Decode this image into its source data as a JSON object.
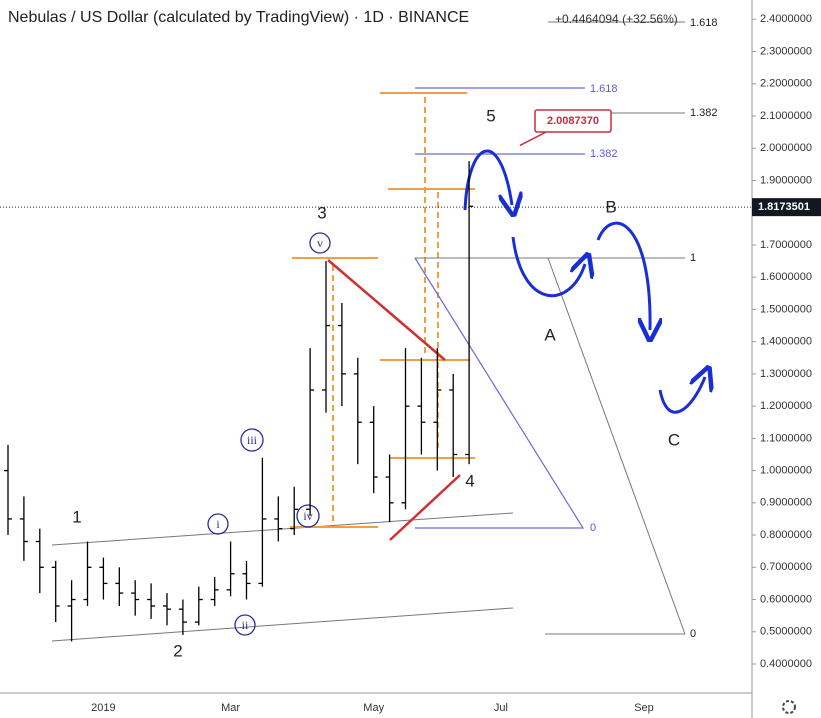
{
  "chart_data": {
    "type": "ohlc",
    "title": "Nebulas / US Dollar (calculated by TradingView) · 1D · BINANCE",
    "change": "+0.4464094 (+32.56%)",
    "categories": [
      null,
      null,
      null,
      null,
      null,
      null,
      "2019",
      null,
      null,
      null,
      null,
      null,
      null,
      null,
      "Mar",
      null,
      null,
      null,
      null,
      null,
      null,
      null,
      null,
      "May",
      null,
      null,
      null,
      null,
      null,
      null,
      null,
      "Jul",
      null,
      null,
      null,
      null,
      null,
      null,
      null,
      null,
      "Sep",
      null,
      null,
      null,
      null,
      null
    ],
    "open": [
      1.0,
      0.85,
      0.78,
      0.7,
      0.58,
      0.6,
      0.7,
      0.65,
      0.62,
      0.6,
      0.58,
      0.57,
      0.53,
      0.6,
      0.63,
      0.68,
      0.65,
      0.85,
      0.82,
      0.88,
      1.25,
      1.45,
      1.3,
      1.15,
      0.98,
      0.9,
      1.2,
      1.15,
      1.25,
      1.05,
      null,
      null,
      null,
      null,
      null,
      null,
      null,
      null,
      null,
      null,
      null,
      null,
      null,
      null,
      null,
      null
    ],
    "high": [
      1.08,
      0.92,
      0.82,
      0.72,
      0.66,
      0.78,
      0.73,
      0.7,
      0.66,
      0.65,
      0.62,
      0.6,
      0.64,
      0.67,
      0.78,
      0.72,
      1.04,
      0.92,
      0.95,
      1.38,
      1.65,
      1.52,
      1.35,
      1.2,
      1.05,
      1.38,
      1.35,
      1.38,
      1.3,
      1.96,
      null,
      null,
      null,
      null,
      null,
      null,
      null,
      null,
      null,
      null,
      null,
      null,
      null,
      null,
      null,
      null
    ],
    "low": [
      0.8,
      0.72,
      0.62,
      0.53,
      0.47,
      0.58,
      0.6,
      0.58,
      0.55,
      0.54,
      0.52,
      0.49,
      0.52,
      0.58,
      0.61,
      0.6,
      0.64,
      0.78,
      0.8,
      0.86,
      1.18,
      1.2,
      1.02,
      0.93,
      0.84,
      0.88,
      1.05,
      1.0,
      0.98,
      1.02,
      null,
      null,
      null,
      null,
      null,
      null,
      null,
      null,
      null,
      null,
      null,
      null,
      null,
      null,
      null,
      null
    ],
    "close": [
      0.85,
      0.78,
      0.7,
      0.58,
      0.6,
      0.7,
      0.65,
      0.62,
      0.6,
      0.58,
      0.57,
      0.53,
      0.6,
      0.63,
      0.68,
      0.65,
      0.85,
      0.82,
      0.88,
      1.25,
      1.45,
      1.3,
      1.15,
      0.98,
      0.9,
      1.2,
      1.15,
      1.25,
      1.05,
      1.82,
      null,
      null,
      null,
      null,
      null,
      null,
      null,
      null,
      null,
      null,
      null,
      null,
      null,
      null,
      null,
      null
    ],
    "color": "#000000",
    "ylim": [
      0.31,
      2.46
    ],
    "yticks": [
      {
        "value": 0.4,
        "label": "0.4000000"
      },
      {
        "value": 0.5,
        "label": "0.5000000"
      },
      {
        "value": 0.6,
        "label": "0.6000000"
      },
      {
        "value": 0.7,
        "label": "0.7000000"
      },
      {
        "value": 0.8,
        "label": "0.8000000"
      },
      {
        "value": 0.9,
        "label": "0.9000000"
      },
      {
        "value": 1.0,
        "label": "1.0000000"
      },
      {
        "value": 1.1,
        "label": "1.1000000"
      },
      {
        "value": 1.2,
        "label": "1.2000000"
      },
      {
        "value": 1.3,
        "label": "1.3000000"
      },
      {
        "value": 1.4,
        "label": "1.4000000"
      },
      {
        "value": 1.5,
        "label": "1.5000000"
      },
      {
        "value": 1.6,
        "label": "1.6000000"
      },
      {
        "value": 1.7,
        "label": "1.7000000"
      },
      {
        "value": 1.8,
        "label": "1.8000000"
      },
      {
        "value": 1.9,
        "label": "1.9000000"
      },
      {
        "value": 2.0,
        "label": "2.0000000"
      },
      {
        "value": 2.1,
        "label": "2.1000000"
      },
      {
        "value": 2.2,
        "label": "2.2000000"
      },
      {
        "value": 2.3,
        "label": "2.3000000"
      },
      {
        "value": 2.4,
        "label": "2.4000000"
      }
    ],
    "last_price": 1.8173501,
    "callout": {
      "value": 2.008737,
      "label": "2.0087370"
    },
    "annotations": [
      "1",
      "2",
      "3",
      "4",
      "5",
      "A",
      "B",
      "C",
      "i",
      "ii",
      "iii",
      "iv",
      "v"
    ],
    "fib_labels": [
      "1.618",
      "1.382",
      "0",
      "1.618",
      "1.382",
      "1",
      "0"
    ]
  }
}
